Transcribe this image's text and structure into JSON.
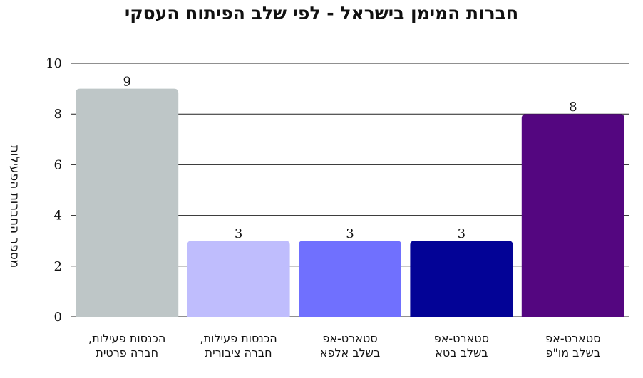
{
  "chart_data": {
    "type": "bar",
    "title": "חברות המימן בישראל - לפי שלב הפיתוח העסקי",
    "ylabel": "מספר החברות הפעילות",
    "xlabel": "",
    "ylim": [
      0,
      10
    ],
    "yticks": [
      0,
      2,
      4,
      6,
      8,
      10
    ],
    "grid": true,
    "categories": [
      [
        "הכנסות פעילות,",
        "חברה פרטית"
      ],
      [
        "הכנסות פעילות,",
        "חברה ציבורית"
      ],
      [
        "סטארט-אפ",
        "בשלב אלפא"
      ],
      [
        "סטארט-אפ",
        "בשלב בטא"
      ],
      [
        "סטארט-אפ",
        "בשלב מו\"פ"
      ]
    ],
    "values": [
      9,
      3,
      3,
      3,
      8
    ],
    "colors": [
      "#bec6c7",
      "#bfbdfd",
      "#7070fe",
      "#030396",
      "#540680"
    ]
  }
}
